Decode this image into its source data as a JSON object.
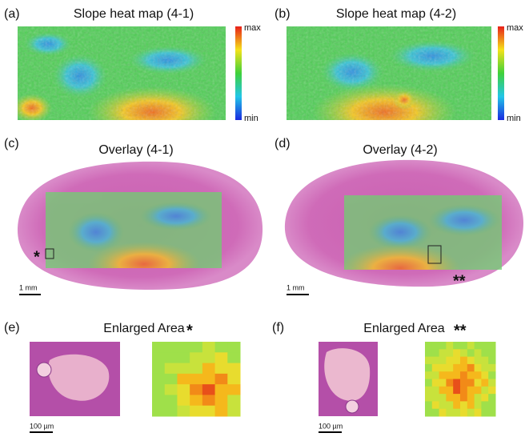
{
  "panels": [
    {
      "label": "(a)",
      "title": "Slope heat map (4-1)",
      "colorbar": {
        "max": "max",
        "min": "min"
      }
    },
    {
      "label": "(b)",
      "title": "Slope heat map (4-2)",
      "colorbar": {
        "max": "max",
        "min": "min"
      }
    },
    {
      "label": "(c)",
      "title": "Overlay (4-1)",
      "marker": "*",
      "scale_bar": "1 mm"
    },
    {
      "label": "(d)",
      "title": "Overlay (4-2)",
      "marker": "**",
      "scale_bar": "1 mm"
    },
    {
      "label": "(e)",
      "title": "Enlarged Area",
      "marker": "*",
      "scale_bar": "100 µm"
    },
    {
      "label": "(f)",
      "title": "Enlarged Area",
      "marker": "**",
      "scale_bar": "100 µm"
    }
  ]
}
